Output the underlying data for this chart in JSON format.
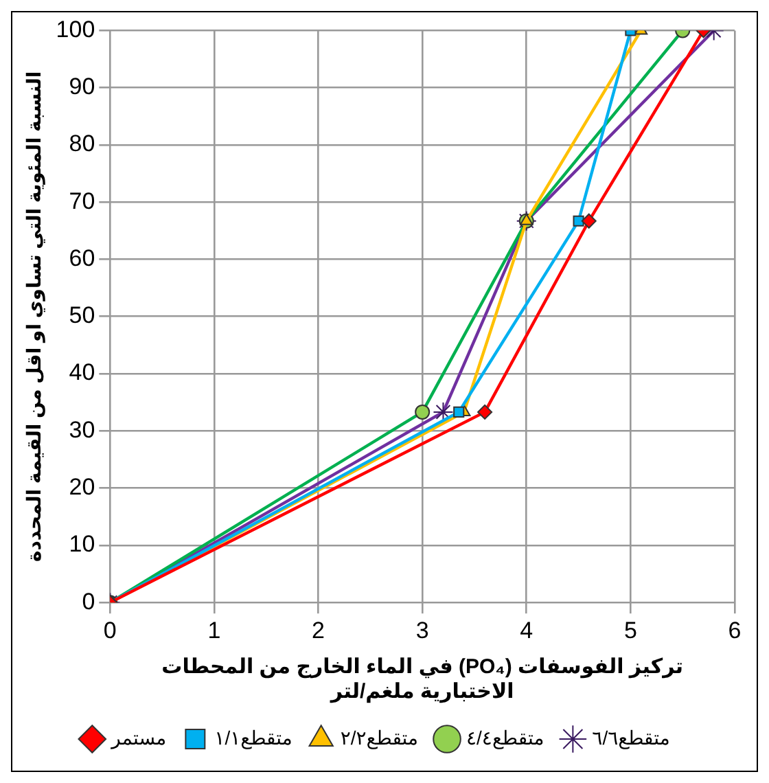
{
  "chart_data": {
    "type": "line",
    "xlabel": "تركيز الفوسفات (PO₄) في الماء الخارج من المحطات\nالاختبارية ملغم/لتر",
    "ylabel": "النسبة المئوية التي تساوي او اقل من القيمة المحددة",
    "series": [
      {
        "name": "مستمر",
        "color": "#ff0000",
        "marker": "diamond",
        "x": [
          0,
          3.6,
          4.6,
          5.7
        ],
        "values": [
          0,
          33.3,
          66.7,
          100
        ]
      },
      {
        "name": "متقطع١/١",
        "color": "#00b0f0",
        "marker": "square",
        "x": [
          0,
          3.35,
          4.5,
          5.0
        ],
        "values": [
          0,
          33.3,
          66.7,
          100
        ]
      },
      {
        "name": "متقطع٢/٢",
        "color": "#ffc000",
        "marker": "triangle",
        "x": [
          0,
          3.4,
          4.0,
          5.1
        ],
        "values": [
          0,
          33.3,
          66.7,
          100
        ]
      },
      {
        "name": "متقطع٤/٤",
        "color": "#00b050",
        "marker": "circle",
        "x": [
          0,
          3.0,
          4.0,
          5.5
        ],
        "values": [
          0,
          33.3,
          66.7,
          100
        ]
      },
      {
        "name": "متقطع٦/٦",
        "color": "#7030a0",
        "marker": "cross",
        "x": [
          0,
          3.2,
          4.0,
          5.8
        ],
        "values": [
          0,
          33.3,
          66.7,
          100
        ]
      }
    ],
    "xlim": [
      0,
      6
    ],
    "xticks": [
      0,
      1,
      2,
      3,
      4,
      5,
      6
    ],
    "ylim": [
      0,
      100
    ],
    "yticks": [
      0,
      10,
      20,
      30,
      40,
      50,
      60,
      70,
      80,
      90,
      100
    ],
    "grid": true,
    "legend": "bottom"
  }
}
